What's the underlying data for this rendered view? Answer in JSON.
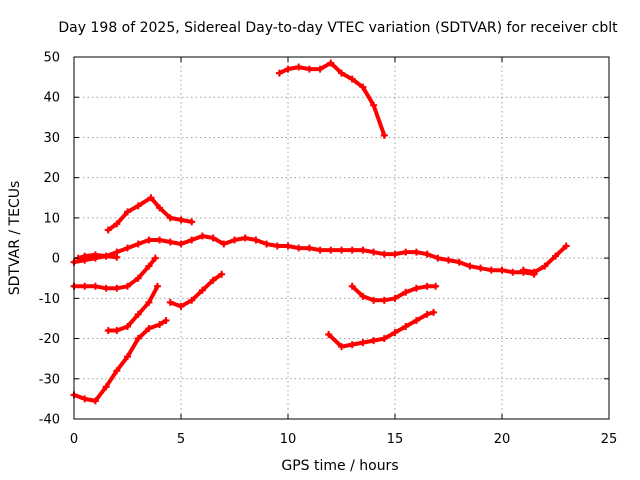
{
  "chart_data": {
    "type": "line",
    "title": "Day 198 of 2025, Sidereal Day-to-day VTEC variation (SDTVAR) for receiver cblt",
    "xlabel": "GPS time / hours",
    "ylabel": "SDTVAR / TECUs",
    "xlim": [
      0,
      25
    ],
    "ylim": [
      -40,
      50
    ],
    "xticks": [
      0,
      5,
      10,
      15,
      20,
      25
    ],
    "yticks": [
      -40,
      -30,
      -20,
      -10,
      0,
      10,
      20,
      30,
      40,
      50
    ],
    "grid": true,
    "legend": "none",
    "series_color": "#ff0000",
    "series": [
      {
        "name": "track-1",
        "x": [
          0,
          0.5,
          1.0,
          1.5,
          2.0,
          2.5,
          3.0,
          3.5,
          4.0,
          4.5,
          5.0,
          5.5,
          6.0,
          6.5,
          7.0,
          7.5,
          8.0,
          8.5,
          9.0,
          9.5,
          10.0,
          10.5,
          11.0,
          11.5,
          12.0,
          12.5,
          13.0,
          13.5,
          14.0,
          14.5,
          15.0,
          15.5,
          16.0,
          16.5,
          17.0,
          17.5,
          18.0,
          18.5,
          19.0,
          19.5,
          20.0,
          20.5,
          21.0,
          21.5
        ],
        "y": [
          -1,
          -0.5,
          0,
          0.5,
          1.5,
          2.5,
          3.5,
          4.5,
          4.5,
          4,
          3.5,
          4.5,
          5.5,
          5,
          3.5,
          4.5,
          5,
          4.5,
          3.5,
          3,
          3,
          2.5,
          2.5,
          2,
          2,
          2,
          2,
          2,
          1.5,
          1,
          1,
          1.5,
          1.5,
          1,
          0,
          -0.5,
          -1,
          -2,
          -2.5,
          -3,
          -3,
          -3.5,
          -3.5,
          -4
        ]
      },
      {
        "name": "track-2",
        "x": [
          0.2,
          0.5,
          1.0,
          1.5,
          2.0
        ],
        "y": [
          0,
          0.5,
          0.8,
          0.5,
          0.2
        ]
      },
      {
        "name": "track-3",
        "x": [
          21.0,
          21.5,
          22.0,
          22.5,
          23.0
        ],
        "y": [
          -3,
          -3.5,
          -2,
          0.5,
          3
        ]
      },
      {
        "name": "track-4",
        "x": [
          1.6,
          2.0,
          2.5,
          3.0,
          3.6,
          4.0,
          4.5,
          5.0,
          5.5
        ],
        "y": [
          7,
          8.5,
          11.5,
          13,
          15,
          12.5,
          10,
          9.5,
          9
        ]
      },
      {
        "name": "track-5",
        "x": [
          0,
          0.5,
          1.0,
          1.5,
          2.0,
          2.5,
          3.0,
          3.5,
          3.8
        ],
        "y": [
          -7,
          -7,
          -7,
          -7.5,
          -7.5,
          -7,
          -5,
          -2,
          0
        ]
      },
      {
        "name": "track-6",
        "x": [
          1.6,
          2.0,
          2.5,
          3.0,
          3.5,
          3.9
        ],
        "y": [
          -18,
          -18,
          -17,
          -14,
          -11,
          -7
        ]
      },
      {
        "name": "track-7",
        "x": [
          0,
          0.5,
          1.0,
          1.5,
          2.0,
          2.5,
          3.0,
          3.5,
          4.0,
          4.3
        ],
        "y": [
          -34,
          -35,
          -35.5,
          -32,
          -28,
          -24.5,
          -20,
          -17.5,
          -16.5,
          -15.5
        ]
      },
      {
        "name": "track-8",
        "x": [
          4.5,
          5.0,
          5.5,
          6.0,
          6.5,
          6.9
        ],
        "y": [
          -11,
          -12,
          -10.5,
          -8,
          -5.5,
          -4
        ]
      },
      {
        "name": "track-9",
        "x": [
          9.6,
          10.0,
          10.5,
          11.0,
          11.5,
          12.0,
          12.5,
          13.0,
          13.5,
          14.0,
          14.5
        ],
        "y": [
          46,
          47,
          47.5,
          47,
          47,
          48.5,
          46,
          44.5,
          42.5,
          38,
          30.5
        ]
      },
      {
        "name": "track-10",
        "x": [
          13.0,
          13.5,
          14.0,
          14.5,
          15.0,
          15.5,
          16.0,
          16.5,
          16.9
        ],
        "y": [
          -7,
          -9.5,
          -10.5,
          -10.5,
          -10,
          -8.5,
          -7.5,
          -7,
          -7
        ]
      },
      {
        "name": "track-11",
        "x": [
          11.9,
          12.5,
          13.0,
          13.5,
          14.0,
          14.5,
          15.0,
          15.5,
          16.0,
          16.5,
          16.8
        ],
        "y": [
          -19,
          -22,
          -21.5,
          -21,
          -20.5,
          -20,
          -18.5,
          -17,
          -15.5,
          -14,
          -13.5
        ]
      }
    ]
  }
}
